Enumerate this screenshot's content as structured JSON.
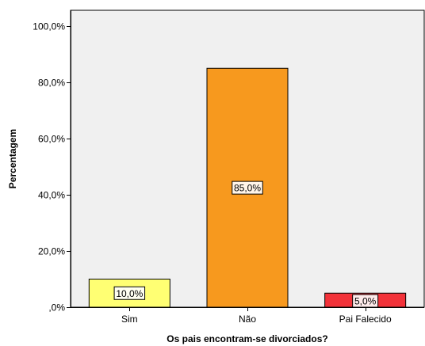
{
  "chart_data": {
    "type": "bar",
    "title": "",
    "xlabel": "Os pais encontram-se divorciados?",
    "ylabel": "Percentagem",
    "categories": [
      "Sim",
      "Não",
      "Pai Falecido"
    ],
    "values": [
      10.0,
      85.0,
      5.0
    ],
    "data_labels": [
      "10,0%",
      "85,0%",
      "5,0%"
    ],
    "bar_colors": [
      "#ffff73",
      "#f7991e",
      "#f23239"
    ],
    "yticks": [
      0,
      20,
      40,
      60,
      80,
      100
    ],
    "ytick_labels": [
      ",0%",
      "20,0%",
      "40,0%",
      "60,0%",
      "80,0%",
      "100,0%"
    ],
    "ylim": [
      0,
      100
    ],
    "grid": false,
    "legend": "none",
    "plot_background": "#f0f0f0"
  }
}
